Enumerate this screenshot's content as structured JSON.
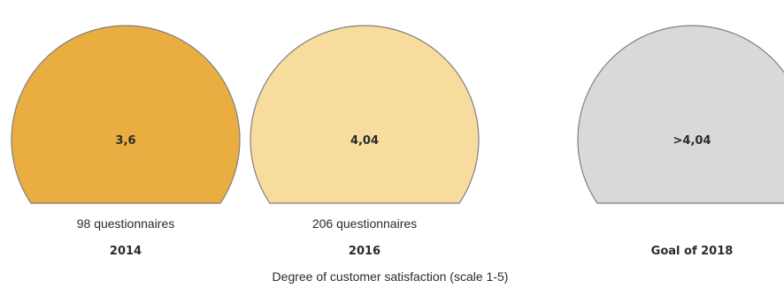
{
  "chart_data": {
    "type": "other",
    "xlabel": "Degree of customer satisfaction (scale 1-5)",
    "items": [
      {
        "value_label": "3,6",
        "sublabel": "98 questionnaires",
        "category": "2014",
        "color": "#e9ad42"
      },
      {
        "value_label": "4,04",
        "sublabel": "206 questionnaires",
        "category": "2016",
        "color": "#f7dc9d"
      },
      {
        "value_label": ">4,04",
        "sublabel": "",
        "category": "Goal of 2018",
        "color": "#d9d9d9"
      }
    ],
    "stroke_color": "#7f7f7f"
  }
}
